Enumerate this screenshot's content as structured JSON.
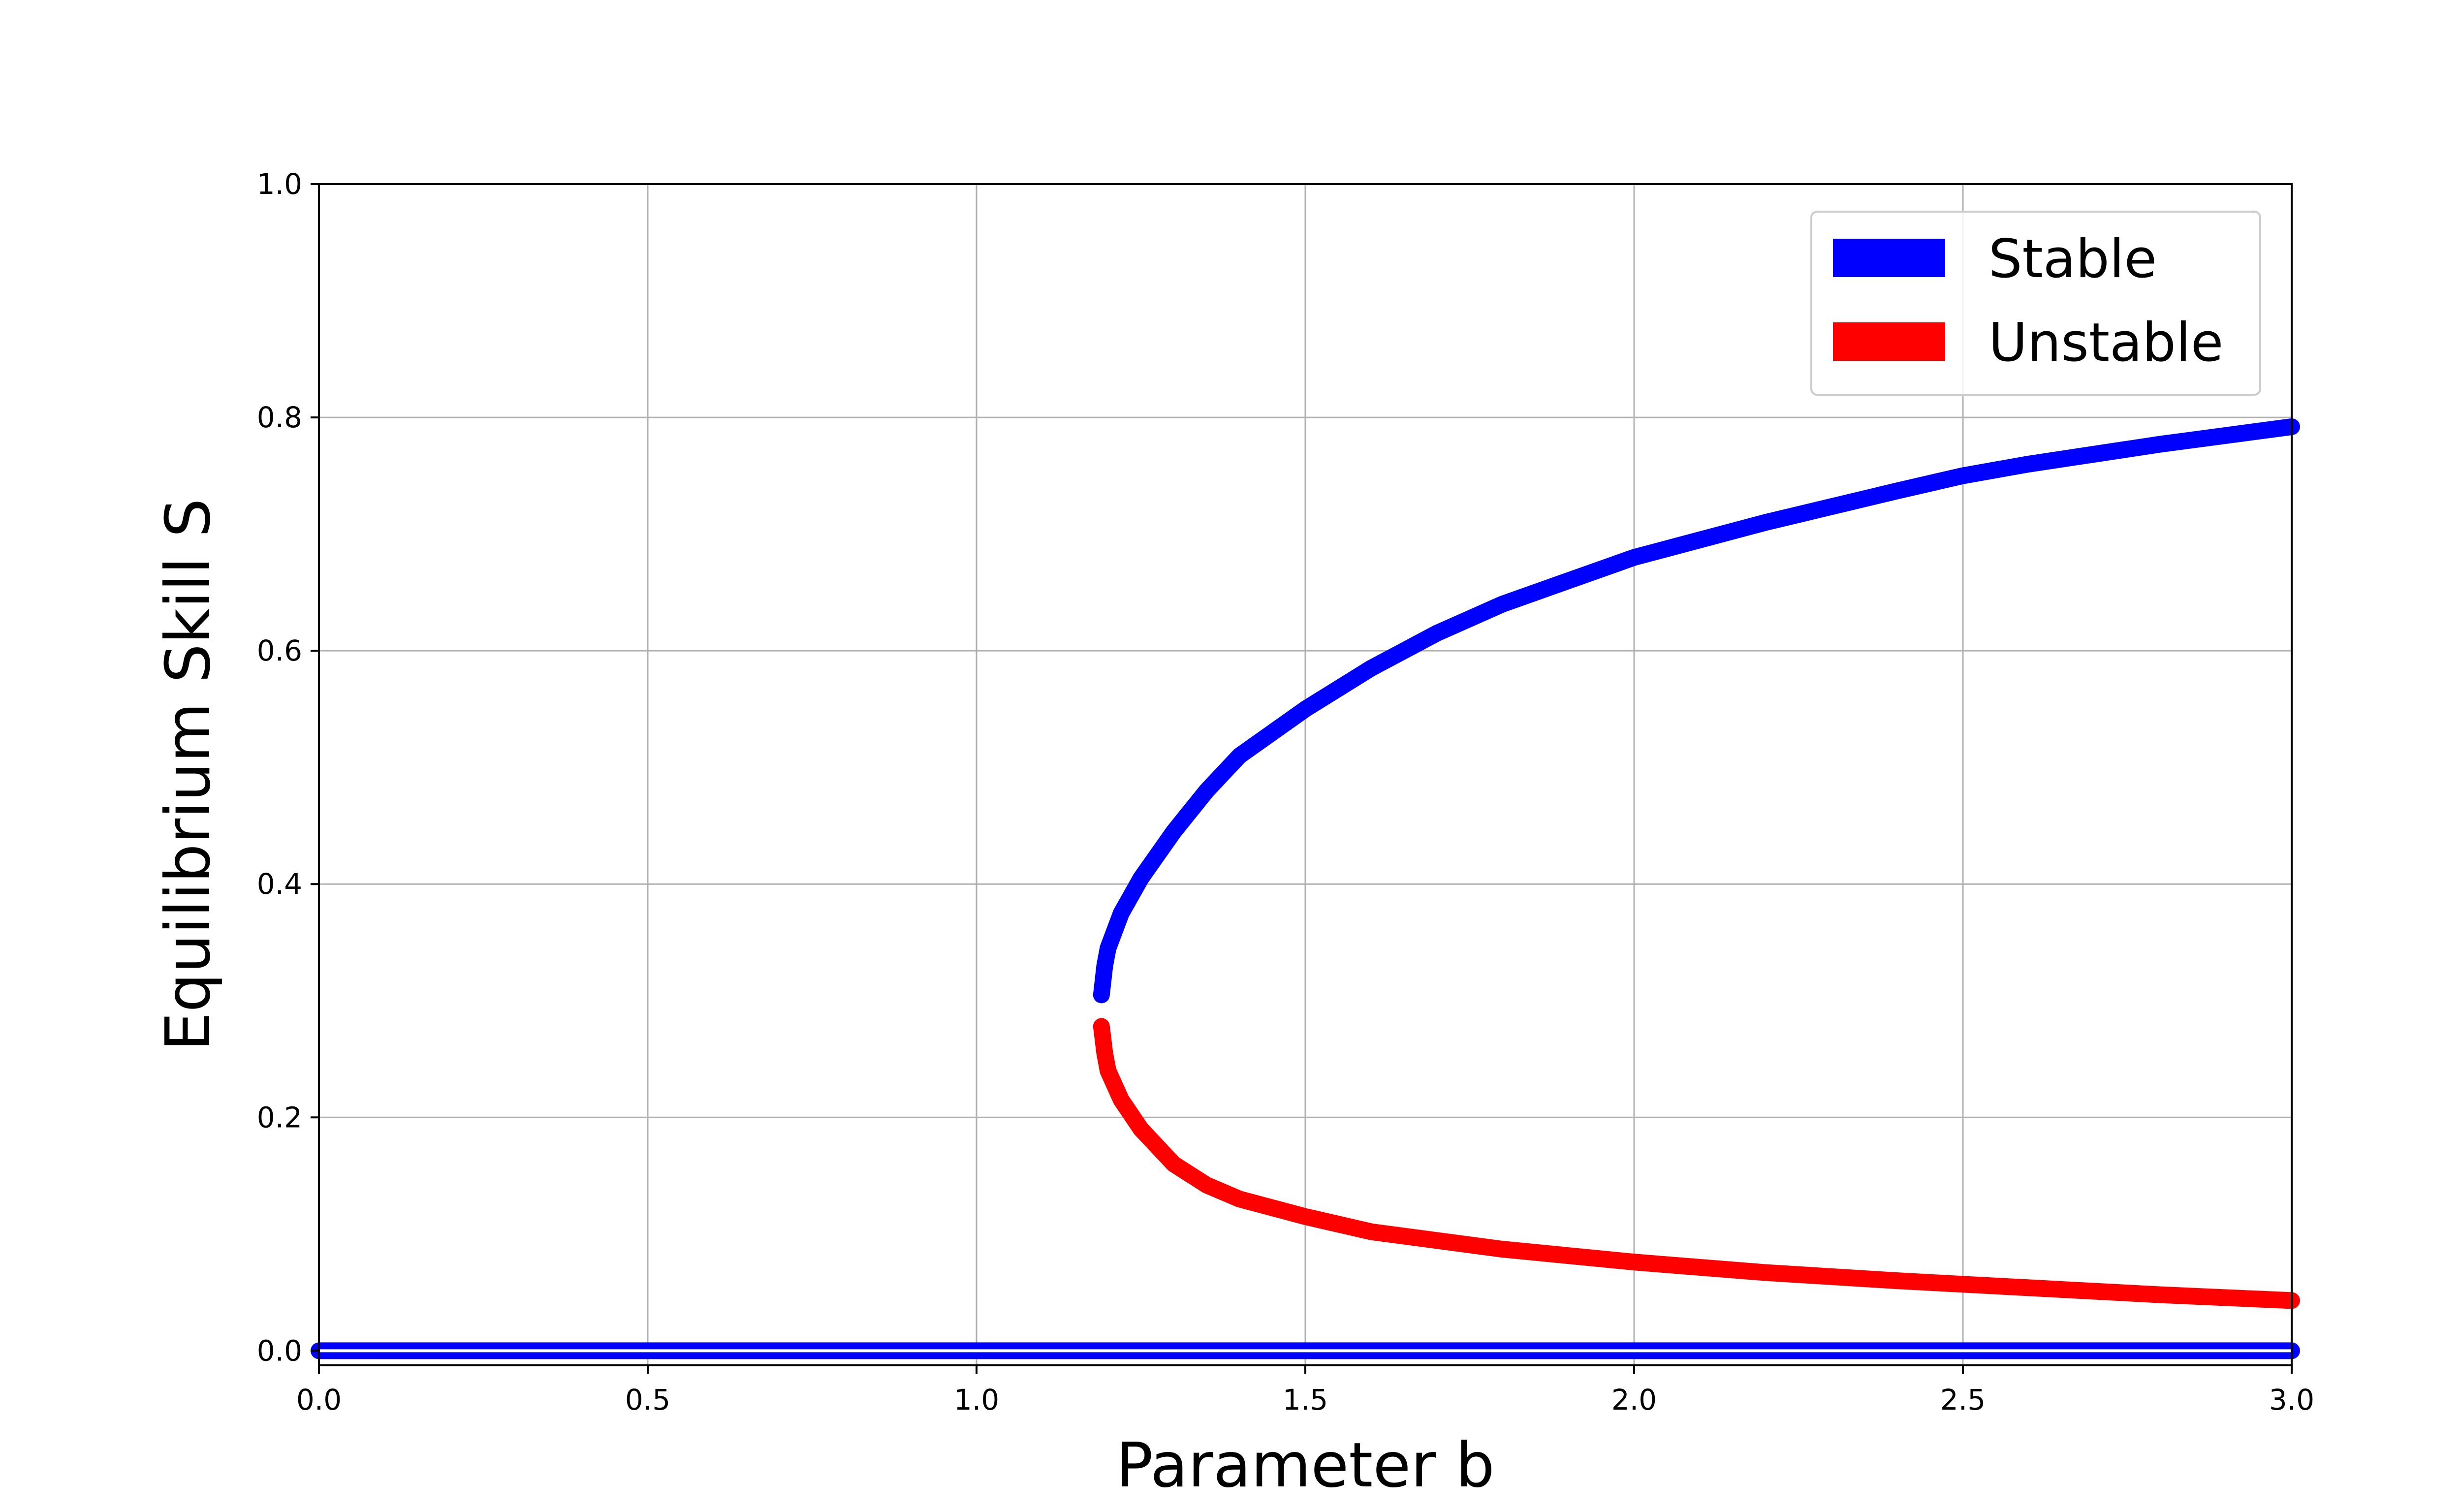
{
  "chart_data": {
    "type": "line",
    "title": "",
    "xlabel": "Parameter b",
    "ylabel": "Equilibrium Skill S",
    "xlim": [
      0.0,
      3.0
    ],
    "ylim": [
      -0.0125,
      1.0
    ],
    "x_ticks": [
      "0.0",
      "0.5",
      "1.0",
      "1.5",
      "2.0",
      "2.5",
      "3.0"
    ],
    "y_ticks": [
      "0.0",
      "0.2",
      "0.4",
      "0.6",
      "0.8",
      "1.0"
    ],
    "grid": true,
    "legend_position": "top-right",
    "series": [
      {
        "name": "Stable",
        "color": "#0000ff",
        "points": [
          [
            1.19,
            0.305
          ],
          [
            1.195,
            0.33
          ],
          [
            1.2,
            0.345
          ],
          [
            1.22,
            0.375
          ],
          [
            1.25,
            0.405
          ],
          [
            1.3,
            0.445
          ],
          [
            1.35,
            0.48
          ],
          [
            1.4,
            0.51
          ],
          [
            1.5,
            0.55
          ],
          [
            1.6,
            0.585
          ],
          [
            1.7,
            0.615
          ],
          [
            1.8,
            0.64
          ],
          [
            1.9,
            0.66
          ],
          [
            2.0,
            0.68
          ],
          [
            2.2,
            0.71
          ],
          [
            2.4,
            0.737
          ],
          [
            2.5,
            0.75
          ],
          [
            2.6,
            0.76
          ],
          [
            2.8,
            0.777
          ],
          [
            3.0,
            0.792
          ]
        ]
      },
      {
        "name": "Unstable",
        "color": "#ff0000",
        "points": [
          [
            1.19,
            0.278
          ],
          [
            1.195,
            0.255
          ],
          [
            1.2,
            0.24
          ],
          [
            1.22,
            0.215
          ],
          [
            1.25,
            0.19
          ],
          [
            1.3,
            0.16
          ],
          [
            1.35,
            0.142
          ],
          [
            1.4,
            0.13
          ],
          [
            1.5,
            0.115
          ],
          [
            1.6,
            0.102
          ],
          [
            1.8,
            0.087
          ],
          [
            2.0,
            0.076
          ],
          [
            2.2,
            0.067
          ],
          [
            2.4,
            0.06
          ],
          [
            2.5,
            0.057
          ],
          [
            2.6,
            0.054
          ],
          [
            2.8,
            0.048
          ],
          [
            3.0,
            0.043
          ]
        ]
      },
      {
        "name": "Stable",
        "color": "#0000ff",
        "points": [
          [
            0.0,
            0.0
          ],
          [
            3.0,
            0.0
          ]
        ]
      }
    ]
  }
}
